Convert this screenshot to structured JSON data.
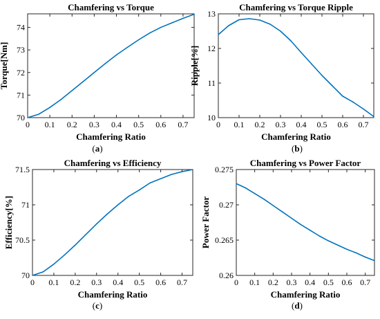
{
  "figure": {
    "background": "#ffffff",
    "line_color": "#0072BD",
    "axes_color": "#262626"
  },
  "chart_data": [
    {
      "id": "a",
      "type": "line",
      "title": "Chamfering vs Torque",
      "xlabel": "Chamfering Ratio",
      "ylabel": "Torque[Nm]",
      "caption": "(a)",
      "xlim": [
        0,
        0.75
      ],
      "ylim": [
        70,
        74.6
      ],
      "xticks": [
        0,
        0.1,
        0.2,
        0.3,
        0.4,
        0.5,
        0.6,
        0.7
      ],
      "xtick_labels": [
        "0",
        "0.1",
        "0.2",
        "0.3",
        "0.4",
        "0.5",
        "0.6",
        "0.7"
      ],
      "yticks": [
        70,
        71,
        72,
        73,
        74
      ],
      "ytick_labels": [
        "70",
        "71",
        "72",
        "73",
        "74"
      ],
      "grid": false,
      "series": [
        {
          "x": [
            0,
            0.05,
            0.1,
            0.15,
            0.2,
            0.25,
            0.3,
            0.35,
            0.4,
            0.45,
            0.5,
            0.55,
            0.6,
            0.65,
            0.7,
            0.75
          ],
          "y": [
            70.0,
            70.15,
            70.45,
            70.8,
            71.2,
            71.6,
            72.0,
            72.4,
            72.78,
            73.12,
            73.45,
            73.75,
            74.0,
            74.2,
            74.4,
            74.58
          ]
        }
      ]
    },
    {
      "id": "b",
      "type": "line",
      "title": "Chamfering vs Torque Ripple",
      "xlabel": "Chamfering Ratio",
      "ylabel": "Ripple[%]",
      "caption": "(b)",
      "xlim": [
        0,
        0.75
      ],
      "ylim": [
        10,
        13
      ],
      "xticks": [
        0,
        0.1,
        0.2,
        0.3,
        0.4,
        0.5,
        0.6,
        0.7
      ],
      "xtick_labels": [
        "0",
        "0.1",
        "0.2",
        "0.3",
        "0.4",
        "0.5",
        "0.6",
        "0.7"
      ],
      "yticks": [
        10,
        11,
        12,
        13
      ],
      "ytick_labels": [
        "10",
        "11",
        "12",
        "13"
      ],
      "grid": false,
      "series": [
        {
          "x": [
            0,
            0.05,
            0.1,
            0.15,
            0.2,
            0.25,
            0.3,
            0.35,
            0.4,
            0.45,
            0.5,
            0.55,
            0.6,
            0.65,
            0.7,
            0.75
          ],
          "y": [
            12.4,
            12.66,
            12.83,
            12.86,
            12.82,
            12.7,
            12.5,
            12.22,
            11.88,
            11.55,
            11.22,
            10.92,
            10.62,
            10.45,
            10.25,
            10.03
          ]
        }
      ]
    },
    {
      "id": "c",
      "type": "line",
      "title": "Chamfering vs Efficiency",
      "xlabel": "Chamfering Ratio",
      "ylabel": "Efficiency[%]",
      "caption": "(c)",
      "xlim": [
        0,
        0.75
      ],
      "ylim": [
        70,
        71.5
      ],
      "xticks": [
        0,
        0.1,
        0.2,
        0.3,
        0.4,
        0.5,
        0.6,
        0.7
      ],
      "xtick_labels": [
        "0",
        "0.1",
        "0.2",
        "0.3",
        "0.4",
        "0.5",
        "0.6",
        "0.7"
      ],
      "yticks": [
        70,
        70.5,
        71,
        71.5
      ],
      "ytick_labels": [
        "70",
        "70.5",
        "71",
        "71.5"
      ],
      "grid": false,
      "series": [
        {
          "x": [
            0,
            0.05,
            0.1,
            0.15,
            0.2,
            0.25,
            0.3,
            0.35,
            0.4,
            0.45,
            0.5,
            0.55,
            0.6,
            0.65,
            0.7,
            0.75
          ],
          "y": [
            70.0,
            70.05,
            70.16,
            70.29,
            70.43,
            70.58,
            70.73,
            70.87,
            71.0,
            71.12,
            71.21,
            71.31,
            71.37,
            71.43,
            71.47,
            71.5
          ]
        }
      ]
    },
    {
      "id": "d",
      "type": "line",
      "title": "Chamfering vs Power Factor",
      "xlabel": "Chamfering Ratio",
      "ylabel": "Power Factor",
      "caption": "(d)",
      "xlim": [
        0,
        0.75
      ],
      "ylim": [
        0.26,
        0.275
      ],
      "xticks": [
        0,
        0.1,
        0.2,
        0.3,
        0.4,
        0.5,
        0.6,
        0.7
      ],
      "xtick_labels": [
        "0",
        "0.1",
        "0.2",
        "0.3",
        "0.4",
        "0.5",
        "0.6",
        "0.7"
      ],
      "yticks": [
        0.26,
        0.265,
        0.27,
        0.275
      ],
      "ytick_labels": [
        "0.26",
        "0.265",
        "0.27",
        "0.275"
      ],
      "grid": false,
      "series": [
        {
          "x": [
            0,
            0.05,
            0.1,
            0.15,
            0.2,
            0.25,
            0.3,
            0.35,
            0.4,
            0.45,
            0.5,
            0.55,
            0.6,
            0.65,
            0.7,
            0.75
          ],
          "y": [
            0.273,
            0.2724,
            0.2716,
            0.2708,
            0.2699,
            0.269,
            0.2681,
            0.2672,
            0.2664,
            0.2656,
            0.2649,
            0.2643,
            0.2637,
            0.2632,
            0.2626,
            0.2621
          ]
        }
      ]
    }
  ]
}
